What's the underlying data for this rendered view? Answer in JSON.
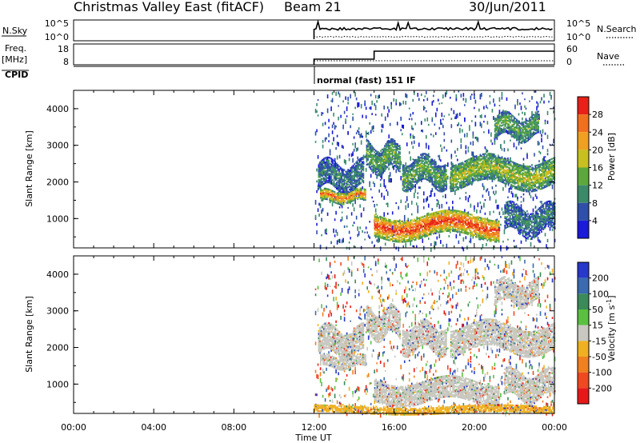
{
  "header": {
    "title": "Christmas Valley East (fitACF)",
    "beam": "Beam 21",
    "date": "30/Jun/2011"
  },
  "small_panels": {
    "nsky_label": "N.Sky",
    "nsearch_label": "N.Search",
    "noise_ticks": [
      "10^5",
      "10^0"
    ],
    "freq_label": "Freq.",
    "freq_unit": "[MHz]",
    "freq_ticks": [
      "18",
      "8"
    ],
    "nave_label": "Nave",
    "nave_ticks": [
      "60",
      "0"
    ],
    "cpid_label": "CPID",
    "cpid_text": "normal (fast) 151 IF"
  },
  "x_axis": {
    "label": "Time UT",
    "ticks": [
      "00:00",
      "04:00",
      "08:00",
      "12:00",
      "16:00",
      "20:00",
      "00:00"
    ]
  },
  "chart_data": [
    {
      "type": "heatmap",
      "name": "power",
      "ylabel": "Slant Range [km]",
      "yticks": [
        "1000",
        "2000",
        "3000",
        "4000"
      ],
      "ylim": [
        200,
        4500
      ],
      "xlim_hours": [
        0,
        24
      ],
      "colorbar_label": "Power [dB]",
      "colorbar_ticks": [
        "4",
        "8",
        "12",
        "16",
        "20",
        "24",
        "28"
      ],
      "colorbar_colors": [
        "#1a1ad8",
        "#2f4fa8",
        "#3a8a6a",
        "#5ca83a",
        "#c8c020",
        "#f0a020",
        "#f07020",
        "#e82018"
      ],
      "data_start_hour": 12.0,
      "bands": [
        {
          "t": [
            12.2,
            14.5
          ],
          "r": [
            1800,
            2500
          ],
          "level": 2
        },
        {
          "t": [
            12.3,
            14.6
          ],
          "r": [
            1450,
            1750
          ],
          "level": 6
        },
        {
          "t": [
            14.6,
            16.3
          ],
          "r": [
            2300,
            3000
          ],
          "level": 3
        },
        {
          "t": [
            15.0,
            21.2
          ],
          "r": [
            500,
            1100
          ],
          "level": 7
        },
        {
          "t": [
            16.4,
            18.6
          ],
          "r": [
            1900,
            2600
          ],
          "level": 3
        },
        {
          "t": [
            18.8,
            24.0
          ],
          "r": [
            1900,
            2600
          ],
          "level": 4
        },
        {
          "t": [
            21.0,
            23.2
          ],
          "r": [
            3200,
            3800
          ],
          "level": 3
        },
        {
          "t": [
            21.5,
            24.0
          ],
          "r": [
            600,
            1300
          ],
          "level": 2
        }
      ]
    },
    {
      "type": "heatmap",
      "name": "velocity",
      "ylabel": "Slant Range [km]",
      "yticks": [
        "1000",
        "2000",
        "3000",
        "4000"
      ],
      "ylim": [
        200,
        4500
      ],
      "xlim_hours": [
        0,
        24
      ],
      "colorbar_label": "Velocity [m s^-1]",
      "colorbar_ticks": [
        "200",
        "100",
        "50",
        "15",
        "-15",
        "-50",
        "-100",
        "-200"
      ],
      "colorbar_colors": [
        "#2838c8",
        "#3a6ab0",
        "#3a8a5a",
        "#5ac040",
        "#c8c8c0",
        "#f0b020",
        "#f08020",
        "#f04820",
        "#e81818"
      ],
      "data_start_hour": 12.0,
      "bands": [
        {
          "t": [
            12.2,
            14.5
          ],
          "r": [
            1800,
            2500
          ],
          "level": 4
        },
        {
          "t": [
            12.3,
            14.6
          ],
          "r": [
            1450,
            1750
          ],
          "level": 4
        },
        {
          "t": [
            14.6,
            16.3
          ],
          "r": [
            2300,
            3000
          ],
          "level": 4
        },
        {
          "t": [
            15.0,
            21.2
          ],
          "r": [
            500,
            1100
          ],
          "level": 4
        },
        {
          "t": [
            16.4,
            18.6
          ],
          "r": [
            1900,
            2600
          ],
          "level": 4
        },
        {
          "t": [
            18.8,
            24.0
          ],
          "r": [
            1900,
            2600
          ],
          "level": 4
        },
        {
          "t": [
            21.0,
            23.2
          ],
          "r": [
            3200,
            3800
          ],
          "level": 4
        },
        {
          "t": [
            21.5,
            24.0
          ],
          "r": [
            600,
            1300
          ],
          "level": 4
        },
        {
          "t": [
            12.0,
            24.0
          ],
          "r": [
            200,
            400
          ],
          "level": 5
        }
      ]
    }
  ]
}
